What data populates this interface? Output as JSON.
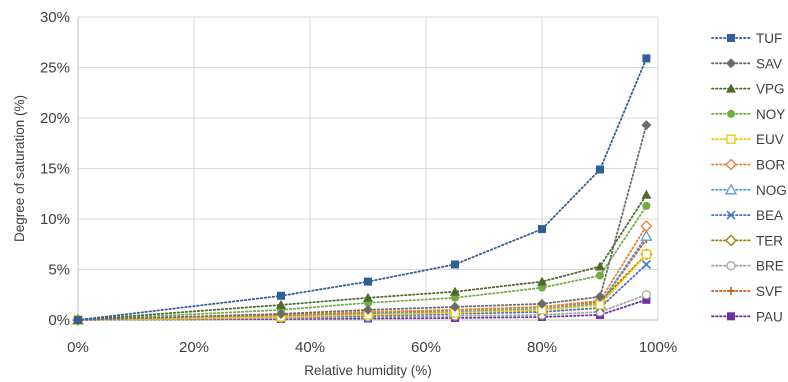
{
  "chart_data": {
    "type": "line",
    "title": "",
    "xlabel": "Relative humidity (%)",
    "ylabel": "Degree of saturation (%)",
    "xlim": [
      0,
      100
    ],
    "ylim": [
      0,
      30
    ],
    "x_ticks": [
      "0%",
      "20%",
      "40%",
      "60%",
      "80%",
      "100%"
    ],
    "y_ticks": [
      "0%",
      "5%",
      "10%",
      "15%",
      "20%",
      "25%",
      "30%"
    ],
    "grid": "vertical and horizontal, light gray",
    "legend_position": "right",
    "line_style": "dotted",
    "x": [
      0,
      35,
      50,
      65,
      80,
      90,
      98
    ],
    "series": [
      {
        "name": "TUF",
        "color": "#2e5f97",
        "marker": "square-filled",
        "values": [
          0,
          2.4,
          3.8,
          5.5,
          9.0,
          14.9,
          25.9
        ]
      },
      {
        "name": "SAV",
        "color": "#6b6b6b",
        "marker": "diamond-filled",
        "values": [
          0,
          0.6,
          1.0,
          1.3,
          1.6,
          2.3,
          19.3
        ]
      },
      {
        "name": "VPG",
        "color": "#4d6b2a",
        "marker": "triangle-filled",
        "values": [
          0,
          1.5,
          2.2,
          2.8,
          3.8,
          5.3,
          12.4
        ]
      },
      {
        "name": "NOY",
        "color": "#70ad47",
        "marker": "circle-filled",
        "values": [
          0,
          1.0,
          1.7,
          2.2,
          3.2,
          4.4,
          11.3
        ]
      },
      {
        "name": "EUV",
        "color": "#f2c500",
        "marker": "square-open",
        "values": [
          0,
          0.3,
          0.5,
          0.7,
          1.0,
          1.5,
          6.5
        ]
      },
      {
        "name": "BOR",
        "color": "#ed7d31",
        "marker": "diamond-open",
        "values": [
          0,
          0.5,
          0.8,
          1.0,
          1.3,
          1.9,
          9.3
        ]
      },
      {
        "name": "NOG",
        "color": "#5b9bd5",
        "marker": "triangle-open",
        "values": [
          0,
          0.4,
          0.6,
          0.8,
          1.1,
          1.6,
          8.3
        ]
      },
      {
        "name": "BEA",
        "color": "#4472c4",
        "marker": "x",
        "values": [
          0,
          0.3,
          0.4,
          0.6,
          0.8,
          1.2,
          5.5
        ]
      },
      {
        "name": "TER",
        "color": "#9c7a00",
        "marker": "diamond-open",
        "values": [
          0,
          0.5,
          0.7,
          1.0,
          1.3,
          1.8,
          6.5
        ]
      },
      {
        "name": "BRE",
        "color": "#a5a5a5",
        "marker": "circle-open",
        "values": [
          0,
          0.2,
          0.3,
          0.4,
          0.5,
          0.8,
          2.5
        ]
      },
      {
        "name": "SVF",
        "color": "#c55a11",
        "marker": "plus",
        "values": [
          0,
          0.4,
          0.6,
          0.8,
          1.1,
          1.6,
          8.0
        ]
      },
      {
        "name": "PAU",
        "color": "#7030a0",
        "marker": "square-filled",
        "values": [
          0,
          0.1,
          0.15,
          0.2,
          0.3,
          0.5,
          2.0
        ]
      }
    ]
  }
}
